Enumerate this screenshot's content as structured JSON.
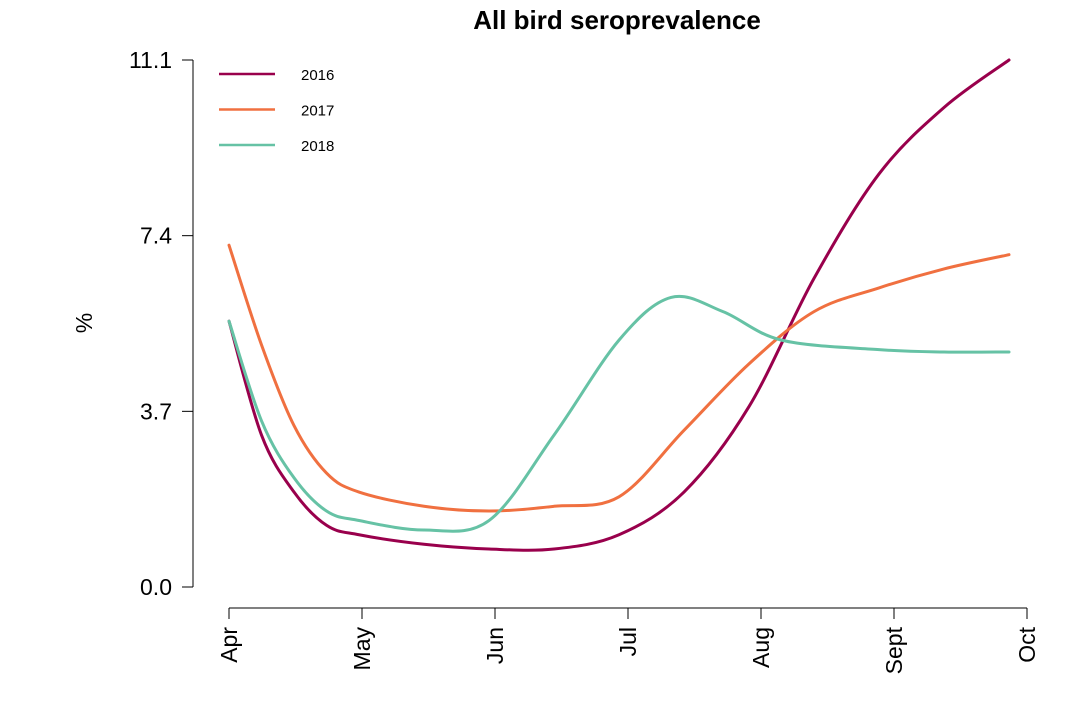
{
  "chart_data": {
    "type": "line",
    "title": "All bird seroprevalence",
    "xlabel": "",
    "ylabel": "%",
    "x_ticks": [
      "Apr",
      "May",
      "Jun",
      "Jul",
      "Aug",
      "Sept",
      "Oct"
    ],
    "y_ticks": [
      "0.0",
      "3.7",
      "7.4",
      "11.1"
    ],
    "ylim": [
      0,
      11.1
    ],
    "grid": false,
    "legend_position": "top-left",
    "series": [
      {
        "name": "2016",
        "color": "#99004c",
        "points": [
          {
            "x": 0.0,
            "y": 5.6
          },
          {
            "x": 0.25,
            "y": 3.2
          },
          {
            "x": 0.5,
            "y": 2.0
          },
          {
            "x": 0.75,
            "y": 1.3
          },
          {
            "x": 1.0,
            "y": 1.1
          },
          {
            "x": 1.5,
            "y": 0.9
          },
          {
            "x": 2.0,
            "y": 0.8
          },
          {
            "x": 2.5,
            "y": 0.8
          },
          {
            "x": 3.0,
            "y": 1.1
          },
          {
            "x": 3.5,
            "y": 2.0
          },
          {
            "x": 4.0,
            "y": 3.8
          },
          {
            "x": 4.5,
            "y": 6.5
          },
          {
            "x": 5.0,
            "y": 8.7
          },
          {
            "x": 5.5,
            "y": 10.1
          },
          {
            "x": 6.0,
            "y": 11.1
          }
        ]
      },
      {
        "name": "2017",
        "color": "#f07040",
        "points": [
          {
            "x": 0.0,
            "y": 7.2
          },
          {
            "x": 0.25,
            "y": 5.1
          },
          {
            "x": 0.5,
            "y": 3.4
          },
          {
            "x": 0.75,
            "y": 2.4
          },
          {
            "x": 1.0,
            "y": 2.0
          },
          {
            "x": 1.5,
            "y": 1.7
          },
          {
            "x": 2.0,
            "y": 1.6
          },
          {
            "x": 2.5,
            "y": 1.7
          },
          {
            "x": 3.0,
            "y": 1.9
          },
          {
            "x": 3.5,
            "y": 3.3
          },
          {
            "x": 4.0,
            "y": 4.7
          },
          {
            "x": 4.5,
            "y": 5.8
          },
          {
            "x": 5.0,
            "y": 6.3
          },
          {
            "x": 5.5,
            "y": 6.7
          },
          {
            "x": 6.0,
            "y": 7.0
          }
        ]
      },
      {
        "name": "2018",
        "color": "#66c2a5",
        "points": [
          {
            "x": 0.0,
            "y": 5.6
          },
          {
            "x": 0.25,
            "y": 3.5
          },
          {
            "x": 0.5,
            "y": 2.3
          },
          {
            "x": 0.75,
            "y": 1.6
          },
          {
            "x": 1.0,
            "y": 1.4
          },
          {
            "x": 1.5,
            "y": 1.2
          },
          {
            "x": 2.0,
            "y": 1.4
          },
          {
            "x": 2.5,
            "y": 3.2
          },
          {
            "x": 3.0,
            "y": 5.2
          },
          {
            "x": 3.4,
            "y": 6.1
          },
          {
            "x": 3.8,
            "y": 5.8
          },
          {
            "x": 4.25,
            "y": 5.2
          },
          {
            "x": 5.0,
            "y": 5.0
          },
          {
            "x": 5.5,
            "y": 4.95
          },
          {
            "x": 6.0,
            "y": 4.95
          }
        ]
      }
    ]
  }
}
